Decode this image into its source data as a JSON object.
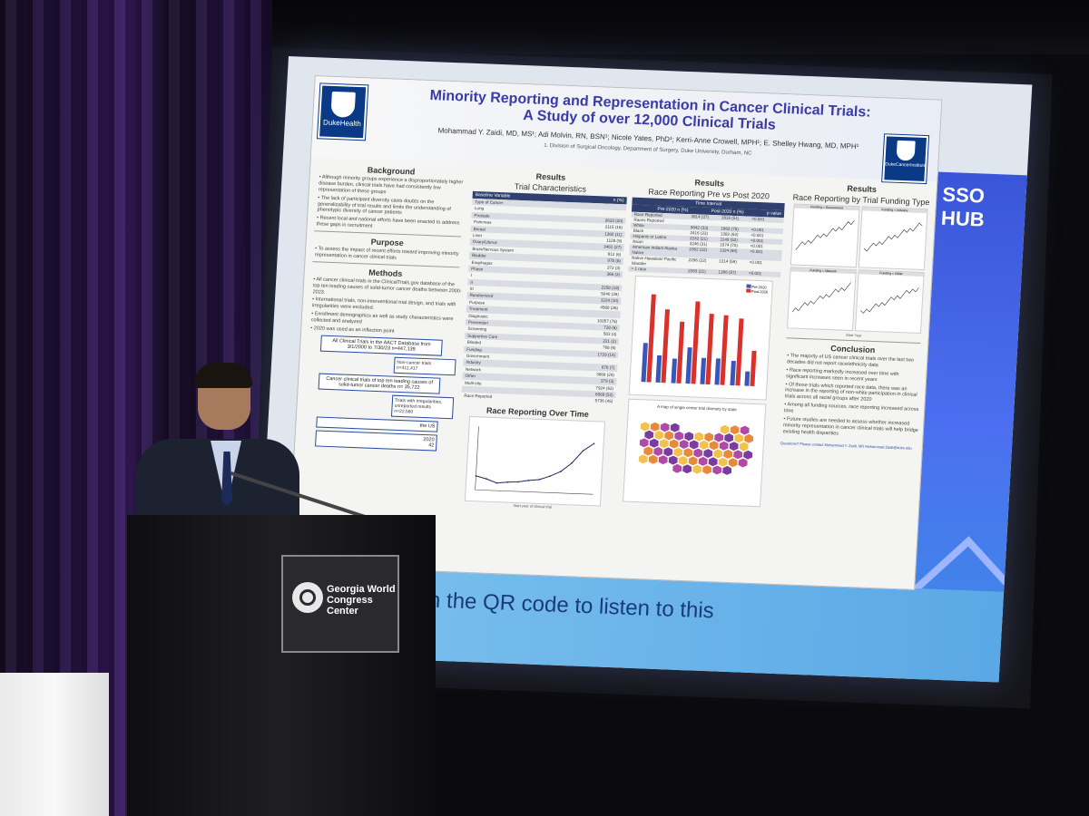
{
  "poster": {
    "title_line1": "Minority Reporting and Representation in Cancer Clinical Trials:",
    "title_line2": "A Study of over 12,000 Clinical Trials",
    "authors": "Mohammad Y. Zaidi, MD, MS¹; Adi Molvin, RN, BSN¹; Nicole Yates, PhD¹; Kerri-Anne Crowell, MPH¹; E. Shelley Hwang, MD, MPH¹",
    "affiliation": "1. Division of Surgical Oncology, Department of Surgery, Duke University, Durham, NC",
    "logo_left": "DukeHealth",
    "logo_right": "DukeCancerInstitute",
    "background": {
      "title": "Background",
      "bullets": [
        "Although minority groups experience a disproportionately higher disease burden, clinical trials have had consistently low representation of these groups",
        "The lack of participant diversity casts doubts on the generalizability of trial results and limits the understanding of phenotypic diversity of cancer patients",
        "Recent local and national efforts have been enacted to address these gaps in recruitment"
      ]
    },
    "purpose": {
      "title": "Purpose",
      "bullets": [
        "To assess the impact of recent efforts toward improving minority representation in cancer clinical trials"
      ]
    },
    "methods": {
      "title": "Methods",
      "bullets": [
        "All cancer clinical trials in the ClinicalTrials.gov database of the top ten leading causes of solid-tumor cancer deaths between 2000-2023.",
        "International trials, non-interventional trial design, and trials with irregularities were excluded.",
        "Enrollment demographics as well as study characteristics were collected and analyzed",
        "2020 was used as an inflection point"
      ]
    },
    "flow": {
      "box1": "All Clinical Trials in the AACT Database from 3/1/2000 to 7/30/23 n=447,139",
      "side1": "Non-cancer trials n=411,417",
      "box2": "Cancer clinical trials of top ten leading causes of solid-tumor cancer deaths n= 35,722",
      "side2": "Trials with irregularities, unreported results n=22,580",
      "box3_partial": "the US",
      "box4_partial_a": "2020",
      "box4_partial_b": "42"
    },
    "results1": {
      "title": "Results",
      "subtitle": "Trial Characteristics",
      "head_left": "Baseline Variable",
      "head_right": "n (%)",
      "rows": [
        [
          "Type of Cancer",
          ""
        ],
        [
          "Lung",
          ""
        ],
        [
          "Prostate",
          "2633 (20)"
        ],
        [
          "Pancreas",
          "2115 (16)"
        ],
        [
          "Breast",
          "1360 (11)"
        ],
        [
          "Liver",
          "1128 (9)"
        ],
        [
          "Ovary/Uterus",
          "3461 (27)"
        ],
        [
          "Brain/Nervous System",
          "812 (6)"
        ],
        [
          "Bladder",
          "978 (8)"
        ],
        [
          "Esophagus",
          "372 (3)"
        ],
        [
          "Phase",
          "366 (3)"
        ],
        [
          "I",
          ""
        ],
        [
          "II",
          "2258 (18)"
        ],
        [
          "III",
          "5040 (39)"
        ],
        [
          "Randomized",
          "1224 (10)"
        ],
        [
          "Purpose",
          "4568 (36)"
        ],
        [
          "Treatment",
          ""
        ],
        [
          "Diagnostic",
          "10057 (78)"
        ],
        [
          "Prevention",
          "728 (6)"
        ],
        [
          "Screening",
          "583 (4)"
        ],
        [
          "Supportive Care",
          "221 (2)"
        ],
        [
          "Blinded",
          "768 (6)"
        ],
        [
          "Funding",
          "1729 (14)"
        ],
        [
          "Government",
          ""
        ],
        [
          "Industry",
          "676 (7)"
        ],
        [
          "Network",
          "3669 (29)"
        ],
        [
          "Other",
          "379 (3)"
        ],
        [
          "Multi-site",
          "7924 (62)"
        ],
        [
          "",
          "6568 (52)"
        ],
        [
          "Race Reported",
          "5736 (45)"
        ]
      ]
    },
    "race_chart": {
      "title": "Race Reporting Over Time",
      "xlabel": "Start year of clinical trial"
    },
    "results2": {
      "title": "Results",
      "subtitle": "Race Reporting Pre vs Post 2020",
      "head_mid": "Time Interval",
      "head_cols": [
        "Pre-2020 n (%)",
        "Post-2020 n (%)",
        "p value"
      ],
      "rows": [
        [
          "Race Reported",
          "3914 (37)",
          "1816 (51)",
          "<0.001"
        ],
        [
          "Races Reported",
          "",
          "",
          ""
        ],
        [
          "White",
          "3642 (33)",
          "1663 (75)",
          "<0.001"
        ],
        [
          "Black",
          "2416 (23)",
          "1382 (62)",
          "<0.001"
        ],
        [
          "Hispanic or Latino",
          "2242 (21)",
          "1149 (52)",
          "<0.001"
        ],
        [
          "Asian",
          "3246 (31)",
          "1574 (70)",
          "<0.001"
        ],
        [
          "American Indian/ Alaska Native",
          "2362 (22)",
          "1324 (60)",
          "<0.001"
        ],
        [
          "Native Hawaiian/ Pacific Islander",
          "2296 (22)",
          "1314 (59)",
          "<0.001"
        ],
        [
          "> 1 race",
          "2263 (21)",
          "1266 (57)",
          "<0.001"
        ]
      ],
      "legend": [
        "Pre-2020",
        "Post-2020"
      ]
    },
    "map": {
      "title": "A map of single center trial diversity by state"
    },
    "results3": {
      "title": "Results",
      "subtitle": "Race Reporting by Trial Funding Type",
      "panels": [
        "Funding = Government",
        "Funding = Industry",
        "Funding = Network",
        "Funding = Other"
      ],
      "xlabel": "Start Year"
    },
    "conclusion": {
      "title": "Conclusion",
      "bullets": [
        "The majority of US cancer clinical trials over the last two decades did not report race/ethnicity data",
        "Race reporting markedly increased over time with significant increases seen in recent years",
        "Of those trials which reported race data, there was an increase in the reporting of non-white participation in clinical trials across all racial groups after 2020",
        "Among all funding sources, race reporting increased across time",
        "Future studies are needed to assess whether increased minority representation in cancer clinical trials will help bridge existing health disparities"
      ],
      "contact": "Questions? Please contact Mohammad Y. Zaidi, MD Mohammad.Zaidi@duke.edu"
    }
  },
  "slide": {
    "band_text": "scan the QR code to listen to this",
    "band_text_2": "n",
    "hub_logo": "SSO HUB"
  },
  "podium": {
    "sign_line1": "Georgia World",
    "sign_line2": "Congress Center"
  },
  "chart_data": [
    {
      "type": "bar",
      "title": "",
      "categories": [
        "White",
        "Black",
        "Hispanic or Latino",
        "Asian",
        "American Indian/ Alaska Native",
        "Native Hawaiian/ Pacific Islander",
        "> 1 race",
        "Other"
      ],
      "series": [
        {
          "name": "Pre-2020",
          "values": [
            33,
            23,
            21,
            31,
            22,
            22,
            21,
            12
          ]
        },
        {
          "name": "Post-2020",
          "values": [
            75,
            62,
            52,
            70,
            60,
            59,
            57,
            30
          ]
        }
      ],
      "colors": [
        "#3b55b8",
        "#d8322c"
      ],
      "ylim": [
        0,
        80
      ]
    },
    {
      "type": "line",
      "title": "Race Reporting Over Time",
      "x": [
        2000,
        2002,
        2004,
        2006,
        2008,
        2010,
        2012,
        2014,
        2016,
        2018,
        2020,
        2022
      ],
      "y": [
        0.22,
        0.18,
        0.12,
        0.14,
        0.15,
        0.18,
        0.2,
        0.26,
        0.34,
        0.48,
        0.68,
        0.8
      ],
      "xlabel": "Start year of clinical trial",
      "grid": false
    }
  ],
  "colors": {
    "poster_title": "#3a3aa8",
    "duke_blue": "#0a3a86",
    "table_head": "#2f3f6e",
    "slide_band": "#6fb8ec",
    "hub_panel": "#3f62e6"
  }
}
